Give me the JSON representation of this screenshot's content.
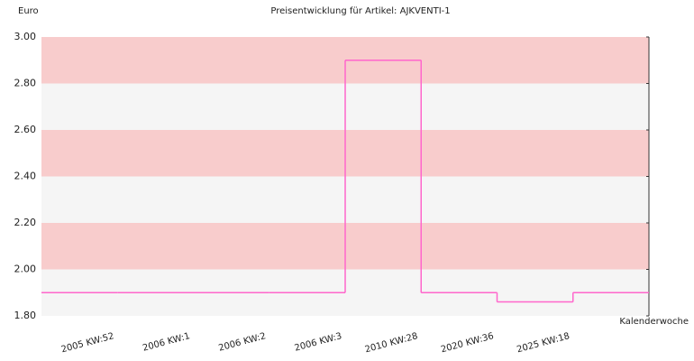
{
  "chart_data": {
    "type": "step",
    "title": "Preisentwicklung für Artikel: AJKVENTI-1",
    "y_label": "Euro",
    "x_label": "Kalenderwoche",
    "categories": [
      "2005 KW:52",
      "2006 KW:1",
      "2006 KW:2",
      "2006 KW:3",
      "2010 KW:28",
      "2020 KW:36",
      "2025 KW:18"
    ],
    "values": [
      1.9,
      1.9,
      1.9,
      2.9,
      1.9,
      1.86,
      1.9
    ],
    "color": "#ff66cc",
    "band_colors": [
      "#f5f5f5",
      "#f8cccc"
    ],
    "ylim": [
      1.8,
      3.0
    ],
    "yticks": [
      {
        "value": 1.8,
        "label": "1.80"
      },
      {
        "value": 2.0,
        "label": "2.00"
      },
      {
        "value": 2.2,
        "label": "2.20"
      },
      {
        "value": 2.4,
        "label": "2.40"
      },
      {
        "value": 2.6,
        "label": "2.60"
      },
      {
        "value": 2.8,
        "label": "2.80"
      },
      {
        "value": 3.0,
        "label": "3.00"
      }
    ]
  }
}
